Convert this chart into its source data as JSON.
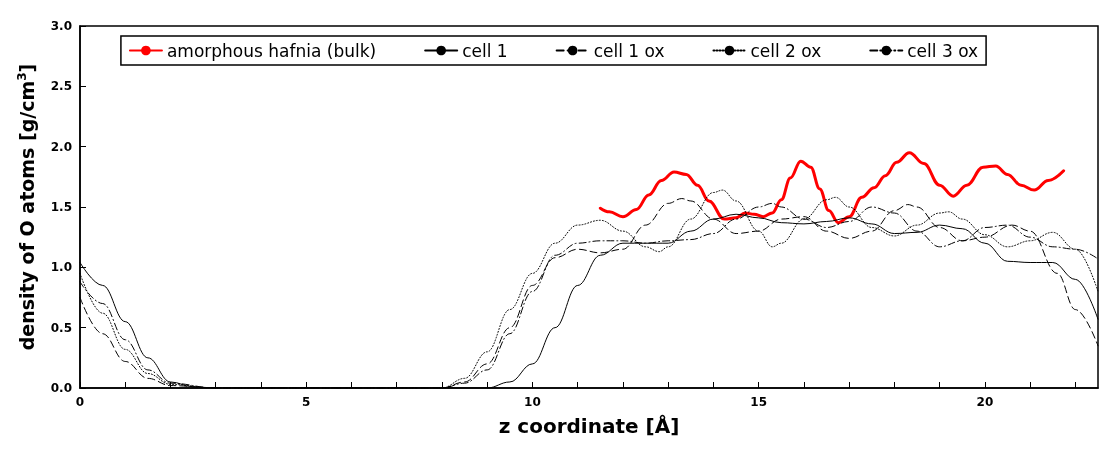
{
  "chart_data": {
    "type": "line",
    "xlabel": "z coordinate [Å]",
    "ylabel": "density of O atoms [g/cm$^{3}$]",
    "xlim": [
      0,
      22.5
    ],
    "ylim": [
      0,
      3.0
    ],
    "xticks": [
      0,
      {
        "value": 1,
        "label": null
      },
      {
        "value": 2,
        "label": null
      },
      {
        "value": 3,
        "label": null
      },
      {
        "value": 4,
        "label": null
      },
      5,
      {
        "value": 6,
        "label": null
      },
      {
        "value": 7,
        "label": null
      },
      {
        "value": 8,
        "label": null
      },
      {
        "value": 9,
        "label": null
      },
      10,
      {
        "value": 11,
        "label": null
      },
      {
        "value": 12,
        "label": null
      },
      {
        "value": 13,
        "label": null
      },
      {
        "value": 14,
        "label": null
      },
      15,
      {
        "value": 16,
        "label": null
      },
      {
        "value": 17,
        "label": null
      },
      {
        "value": 18,
        "label": null
      },
      {
        "value": 19,
        "label": null
      },
      20,
      {
        "value": 21,
        "label": null
      },
      {
        "value": 22,
        "label": null
      }
    ],
    "yticks": [
      {
        "value": 0,
        "label": "0.0"
      },
      {
        "value": 0.5,
        "label": "0.5"
      },
      {
        "value": 1,
        "label": "1.0"
      },
      {
        "value": 1.5,
        "label": "1.5"
      },
      {
        "value": 2,
        "label": "2.0"
      },
      {
        "value": 2.5,
        "label": "2.5"
      },
      {
        "value": 3,
        "label": "3.0"
      }
    ],
    "grid": false,
    "legend": "top",
    "marker": "none",
    "series": [
      {
        "name": "amorphous hafnia (bulk)",
        "color": "#ff0000",
        "line_style": "solid",
        "x": [
          11.5,
          11.7,
          12.0,
          12.3,
          12.57,
          12.85,
          13.13,
          13.4,
          13.65,
          13.9,
          14.24,
          14.5,
          14.7,
          14.9,
          15.1,
          15.3,
          15.5,
          15.7,
          15.93,
          16.15,
          16.35,
          16.55,
          16.76,
          17.0,
          17.28,
          17.55,
          17.8,
          18.05,
          18.33,
          18.65,
          19.0,
          19.3,
          19.6,
          19.96,
          20.24,
          20.5,
          20.8,
          21.09,
          21.4,
          21.74
        ],
        "values": [
          1.49,
          1.46,
          1.42,
          1.48,
          1.6,
          1.72,
          1.79,
          1.77,
          1.68,
          1.55,
          1.4,
          1.41,
          1.45,
          1.44,
          1.42,
          1.45,
          1.56,
          1.74,
          1.88,
          1.83,
          1.65,
          1.47,
          1.37,
          1.42,
          1.58,
          1.66,
          1.76,
          1.87,
          1.95,
          1.86,
          1.68,
          1.59,
          1.68,
          1.83,
          1.84,
          1.77,
          1.68,
          1.64,
          1.72,
          1.8
        ]
      },
      {
        "name": "cell 1",
        "color": "#000000",
        "line_style": "solid",
        "x": [
          0,
          0.5,
          1,
          1.5,
          2,
          2.5,
          3,
          9,
          9.5,
          10,
          10.5,
          11,
          11.5,
          12,
          12.5,
          13,
          13.5,
          14,
          14.5,
          15,
          15.5,
          16,
          16.5,
          17,
          17.5,
          18,
          18.5,
          19,
          19.5,
          20,
          20.5,
          21,
          21.5,
          22,
          22.5
        ],
        "values": [
          1.04,
          0.85,
          0.55,
          0.25,
          0.05,
          0.01,
          0,
          0,
          0.05,
          0.2,
          0.5,
          0.85,
          1.1,
          1.2,
          1.2,
          1.2,
          1.3,
          1.4,
          1.44,
          1.41,
          1.37,
          1.36,
          1.38,
          1.41,
          1.36,
          1.28,
          1.29,
          1.35,
          1.32,
          1.2,
          1.05,
          1.04,
          1.04,
          0.9,
          0.57
        ]
      },
      {
        "name": "cell 1 ox",
        "color": "#000000",
        "line_style": "dashed",
        "x": [
          0,
          0.5,
          1,
          1.5,
          2,
          3,
          8,
          8.5,
          9,
          9.5,
          10,
          10.5,
          11,
          11.5,
          12,
          12.5,
          13,
          13.3,
          13.5,
          14,
          14.5,
          15,
          15.5,
          16,
          16.5,
          17,
          17.5,
          18,
          18.3,
          18.5,
          19,
          19.5,
          20,
          20.6,
          21,
          21.6,
          22,
          22.5
        ],
        "values": [
          0.75,
          0.45,
          0.22,
          0.08,
          0.02,
          0,
          0,
          0.05,
          0.2,
          0.5,
          0.85,
          1.08,
          1.15,
          1.12,
          1.15,
          1.35,
          1.53,
          1.57,
          1.55,
          1.4,
          1.28,
          1.3,
          1.4,
          1.42,
          1.3,
          1.24,
          1.3,
          1.47,
          1.52,
          1.5,
          1.33,
          1.22,
          1.25,
          1.35,
          1.3,
          0.95,
          0.65,
          0.35
        ]
      },
      {
        "name": "cell 2 ox",
        "color": "#000000",
        "line_style": "dotted",
        "x": [
          0,
          0.5,
          1,
          1.5,
          2,
          3,
          8,
          8.5,
          9,
          9.5,
          10,
          10.5,
          11,
          11.5,
          12,
          12.5,
          12.8,
          13,
          13.5,
          14,
          14.2,
          14.5,
          15,
          15.3,
          15.5,
          16,
          16.5,
          16.7,
          17,
          17.5,
          18,
          18.5,
          19,
          19.2,
          19.5,
          20,
          20.5,
          21,
          21.5,
          22,
          22.5
        ],
        "values": [
          0.95,
          0.62,
          0.32,
          0.12,
          0.03,
          0,
          0,
          0.08,
          0.3,
          0.65,
          0.95,
          1.2,
          1.35,
          1.39,
          1.3,
          1.17,
          1.13,
          1.17,
          1.4,
          1.62,
          1.64,
          1.55,
          1.3,
          1.17,
          1.2,
          1.4,
          1.56,
          1.58,
          1.5,
          1.33,
          1.26,
          1.35,
          1.45,
          1.46,
          1.4,
          1.27,
          1.17,
          1.22,
          1.29,
          1.15,
          0.8
        ]
      },
      {
        "name": "cell 3 ox",
        "color": "#000000",
        "line_style": "dashdot",
        "x": [
          0,
          0.5,
          1,
          1.5,
          2,
          3,
          8,
          8.5,
          9,
          9.5,
          10,
          10.5,
          11,
          11.5,
          12,
          12.5,
          13,
          13.5,
          14,
          14.5,
          15,
          15.3,
          15.5,
          16,
          16.5,
          17,
          17.5,
          18,
          18.5,
          19,
          19.5,
          20,
          20.5,
          21,
          21.5,
          22,
          22.5
        ],
        "values": [
          0.88,
          0.7,
          0.4,
          0.15,
          0.04,
          0,
          0,
          0.04,
          0.15,
          0.45,
          0.8,
          1.1,
          1.2,
          1.22,
          1.22,
          1.2,
          1.22,
          1.23,
          1.28,
          1.4,
          1.5,
          1.53,
          1.5,
          1.4,
          1.33,
          1.38,
          1.5,
          1.45,
          1.3,
          1.17,
          1.22,
          1.33,
          1.35,
          1.25,
          1.17,
          1.15,
          1.07
        ]
      }
    ]
  }
}
